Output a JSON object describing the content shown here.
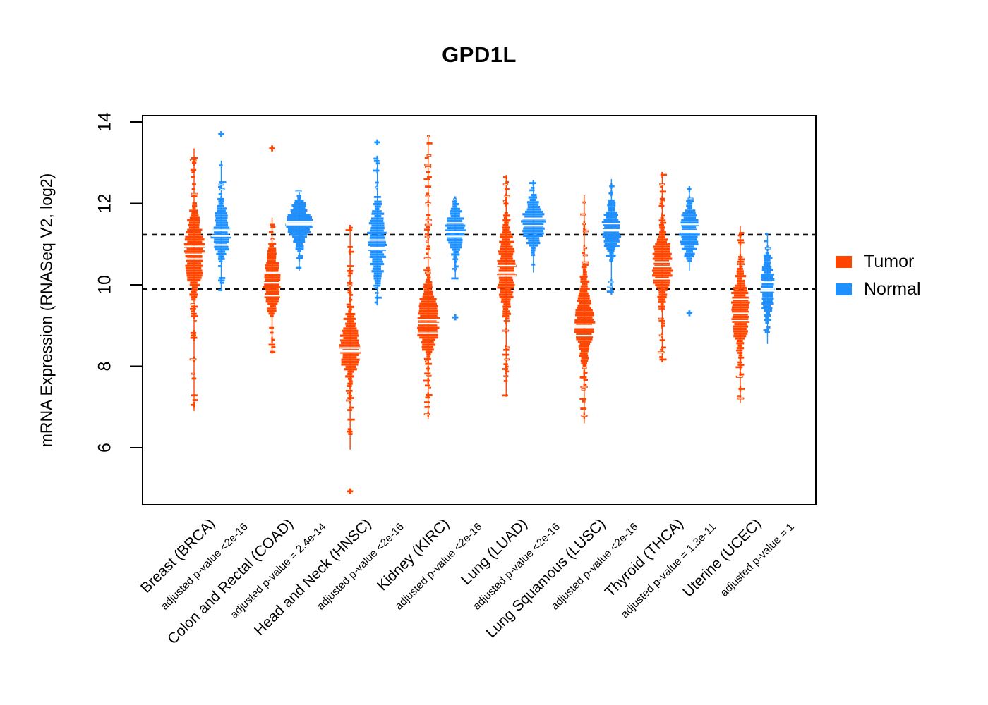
{
  "title": "GPD1L",
  "y_axis": {
    "label": "mRNA Expression (RNASeq V2, log2)",
    "ticks": [
      6,
      8,
      10,
      12,
      14
    ]
  },
  "legend": {
    "items": [
      {
        "label": "Tumor",
        "color": "#FF4500"
      },
      {
        "label": "Normal",
        "color": "#1E90FF"
      }
    ]
  },
  "chart_data": {
    "type": "violin-strip",
    "title": "GPD1L",
    "ylabel": "mRNA Expression (RNASeq V2, log2)",
    "ylim": [
      4.6,
      14.15
    ],
    "yticks": [
      6,
      8,
      10,
      12,
      14
    ],
    "grid": false,
    "legend_position": "right",
    "series_colors": {
      "Tumor": "#FF4500",
      "Normal": "#1E90FF"
    },
    "reference_lines": {
      "style": "dashed",
      "color": "#111111",
      "values": [
        11.23,
        9.9
      ]
    },
    "groups": [
      {
        "label": "Breast (BRCA)",
        "code": "BRCA",
        "pvalue": "adjusted p-value <2e-16",
        "tumor": {
          "median": 10.75,
          "q1": 10.3,
          "q3": 11.25,
          "min": 6.9,
          "max": 13.35,
          "width": 13,
          "tail": 0.9,
          "outliers": []
        },
        "normal": {
          "median": 11.2,
          "q1": 10.95,
          "q3": 11.55,
          "min": 9.85,
          "max": 13.05,
          "width": 12,
          "tail": 0.8,
          "outliers": [
            13.7
          ]
        }
      },
      {
        "label": "Colon and Rectal (COAD)",
        "code": "COAD",
        "pvalue": "adjusted p-value = 2.4e-14",
        "tumor": {
          "median": 10.05,
          "q1": 9.7,
          "q3": 10.45,
          "min": 8.3,
          "max": 11.65,
          "width": 12,
          "tail": 0.7,
          "outliers": [
            13.35
          ]
        },
        "normal": {
          "median": 11.5,
          "q1": 11.25,
          "q3": 11.75,
          "min": 10.35,
          "max": 12.3,
          "width": 17,
          "tail": 0.5,
          "outliers": []
        }
      },
      {
        "label": "Head and Neck (HNSC)",
        "code": "HNSC",
        "pvalue": "adjusted p-value <2e-16",
        "tumor": {
          "median": 8.45,
          "q1": 8.1,
          "q3": 8.85,
          "min": 5.95,
          "max": 11.4,
          "width": 13,
          "tail": 1.0,
          "outliers": [
            4.93
          ]
        },
        "normal": {
          "median": 11.1,
          "q1": 10.65,
          "q3": 11.5,
          "min": 9.55,
          "max": 13.1,
          "width": 12,
          "tail": 0.7,
          "outliers": [
            13.5
          ]
        }
      },
      {
        "label": "Kidney (KIRC)",
        "code": "KIRC",
        "pvalue": "adjusted p-value <2e-16",
        "tumor": {
          "median": 9.05,
          "q1": 8.7,
          "q3": 9.5,
          "min": 6.7,
          "max": 13.65,
          "width": 15,
          "tail": 1.1,
          "outliers": []
        },
        "normal": {
          "median": 11.3,
          "q1": 11.05,
          "q3": 11.6,
          "min": 10.15,
          "max": 12.1,
          "width": 13,
          "tail": 0.5,
          "outliers": [
            9.2
          ]
        }
      },
      {
        "label": "Lung (LUAD)",
        "code": "LUAD",
        "pvalue": "adjusted p-value <2e-16",
        "tumor": {
          "median": 10.3,
          "q1": 9.85,
          "q3": 10.9,
          "min": 7.25,
          "max": 12.7,
          "width": 12,
          "tail": 0.8,
          "outliers": []
        },
        "normal": {
          "median": 11.45,
          "q1": 11.2,
          "q3": 11.75,
          "min": 10.3,
          "max": 12.5,
          "width": 16,
          "tail": 0.4,
          "outliers": []
        }
      },
      {
        "label": "Lung Squamous (LUSC)",
        "code": "LUSC",
        "pvalue": "adjusted p-value <2e-16",
        "tumor": {
          "median": 9.0,
          "q1": 8.6,
          "q3": 9.55,
          "min": 6.6,
          "max": 12.2,
          "width": 13,
          "tail": 0.8,
          "outliers": []
        },
        "normal": {
          "median": 11.35,
          "q1": 11.05,
          "q3": 11.65,
          "min": 9.8,
          "max": 12.6,
          "width": 13,
          "tail": 0.5,
          "outliers": []
        }
      },
      {
        "label": "Thyroid (THCA)",
        "code": "THCA",
        "pvalue": "adjusted p-value = 1.3e-11",
        "tumor": {
          "median": 10.45,
          "q1": 10.05,
          "q3": 10.85,
          "min": 8.1,
          "max": 12.7,
          "width": 13,
          "tail": 0.9,
          "outliers": []
        },
        "normal": {
          "median": 11.3,
          "q1": 11.0,
          "q3": 11.6,
          "min": 10.35,
          "max": 12.35,
          "width": 13,
          "tail": 0.5,
          "outliers": [
            9.3
          ]
        }
      },
      {
        "label": "Uterine (UCEC)",
        "code": "UCEC",
        "pvalue": "adjusted p-value = 1",
        "tumor": {
          "median": 9.3,
          "q1": 8.95,
          "q3": 9.75,
          "min": 7.1,
          "max": 11.45,
          "width": 13,
          "tail": 0.9,
          "outliers": []
        },
        "normal": {
          "median": 9.9,
          "q1": 9.5,
          "q3": 10.35,
          "min": 8.55,
          "max": 11.25,
          "width": 8,
          "tail": 0.6,
          "outliers": []
        }
      }
    ]
  }
}
